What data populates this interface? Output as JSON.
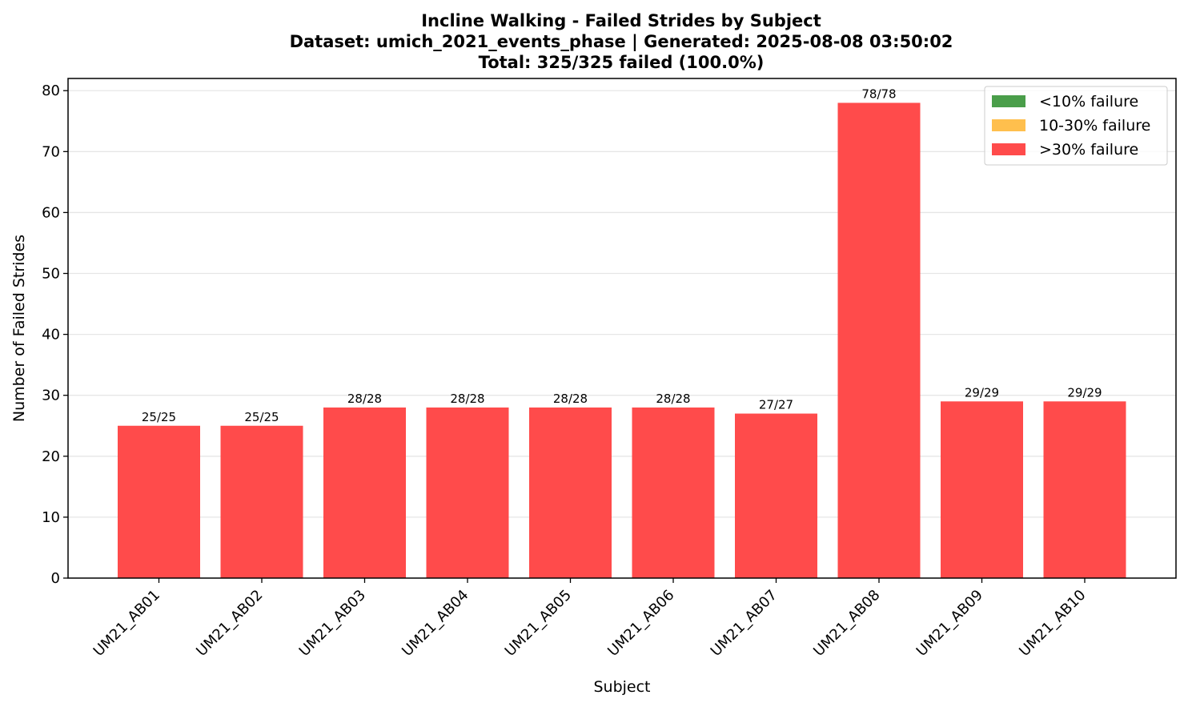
{
  "chart_data": {
    "type": "bar",
    "title_lines": [
      "Incline Walking - Failed Strides by Subject",
      "Dataset: umich_2021_events_phase | Generated: 2025-08-08 03:50:02",
      "Total: 325/325 failed (100.0%)"
    ],
    "xlabel": "Subject",
    "ylabel": "Number of Failed Strides",
    "ylim": [
      0,
      82
    ],
    "yticks": [
      0,
      10,
      20,
      30,
      40,
      50,
      60,
      70,
      80
    ],
    "grid": "horizontal",
    "legend_position": "top-right",
    "categories": [
      "UM21_AB01",
      "UM21_AB02",
      "UM21_AB03",
      "UM21_AB04",
      "UM21_AB05",
      "UM21_AB06",
      "UM21_AB07",
      "UM21_AB08",
      "UM21_AB09",
      "UM21_AB10"
    ],
    "values": [
      25,
      25,
      28,
      28,
      28,
      28,
      27,
      78,
      29,
      29
    ],
    "bar_labels": [
      "25/25",
      "25/25",
      "28/28",
      "28/28",
      "28/28",
      "28/28",
      "27/27",
      "78/78",
      "29/29",
      "29/29"
    ],
    "bar_color": "#ff4b4b",
    "legend": [
      {
        "label": "<10% failure",
        "color": "#4a9e4a"
      },
      {
        "label": "10-30% failure",
        "color": "#ffbf4d"
      },
      {
        "label": ">30% failure",
        "color": "#ff4b4b"
      }
    ]
  }
}
